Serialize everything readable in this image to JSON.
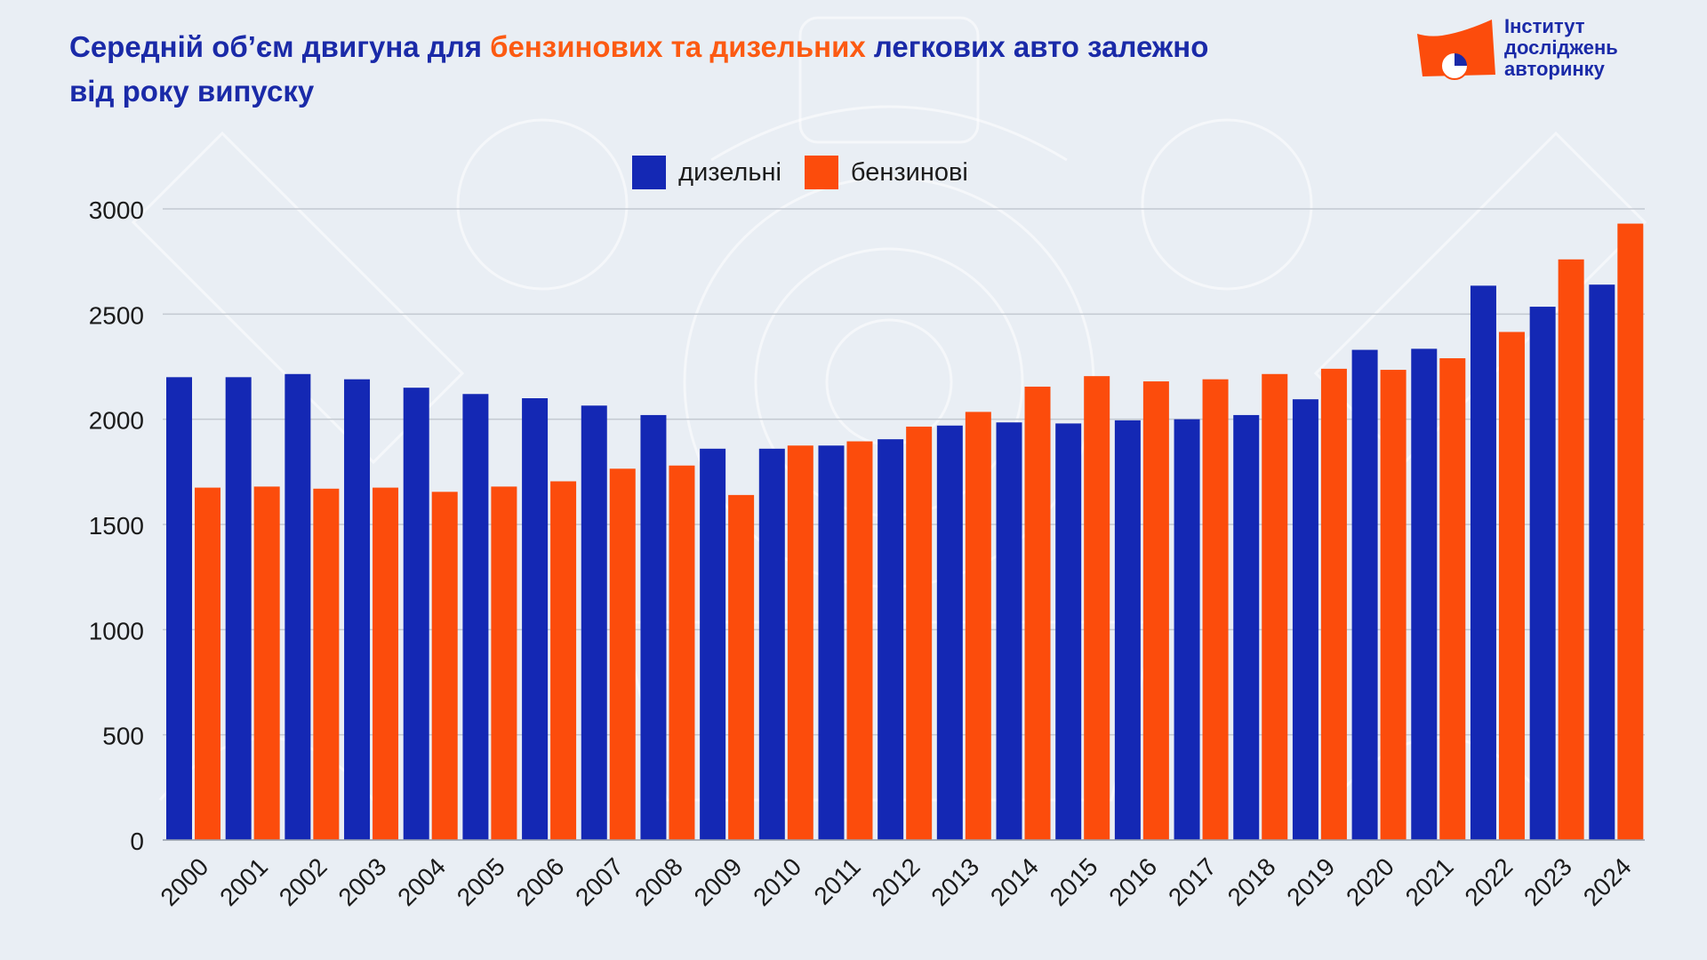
{
  "title": {
    "part1": "Середній об’єм двигуна для ",
    "accent": "бензинових та дизельних",
    "part2": " легкових авто залежно",
    "line2": "від року випуску"
  },
  "logo": {
    "line1": "Інститут",
    "line2": "досліджень",
    "line3": "авторинку"
  },
  "colors": {
    "diesel": "#1428b4",
    "petrol": "#fc4c0c",
    "title": "#1a2aa8"
  },
  "chart_data": {
    "type": "bar",
    "categories": [
      "2000",
      "2001",
      "2002",
      "2003",
      "2004",
      "2005",
      "2006",
      "2007",
      "2008",
      "2009",
      "2010",
      "2011",
      "2012",
      "2013",
      "2014",
      "2015",
      "2016",
      "2017",
      "2018",
      "2019",
      "2020",
      "2021",
      "2022",
      "2023",
      "2024"
    ],
    "series": [
      {
        "name": "дизельні",
        "values": [
          2200,
          2200,
          2215,
          2190,
          2150,
          2120,
          2100,
          2065,
          2020,
          1860,
          1860,
          1875,
          1905,
          1970,
          1985,
          1980,
          1995,
          2000,
          2020,
          2095,
          2330,
          2335,
          2635,
          2535,
          2640
        ]
      },
      {
        "name": "бензинові",
        "values": [
          1675,
          1680,
          1670,
          1675,
          1655,
          1680,
          1705,
          1765,
          1780,
          1640,
          1875,
          1895,
          1965,
          2035,
          2155,
          2205,
          2180,
          2190,
          2215,
          2240,
          2235,
          2290,
          2415,
          2760,
          2930
        ]
      }
    ],
    "yticks": [
      "0",
      "500",
      "1000",
      "1500",
      "2000",
      "2500",
      "3000"
    ],
    "ylim": [
      0,
      3000
    ],
    "grid": true,
    "legend": "top-center",
    "xlabel_rotation": -45
  }
}
